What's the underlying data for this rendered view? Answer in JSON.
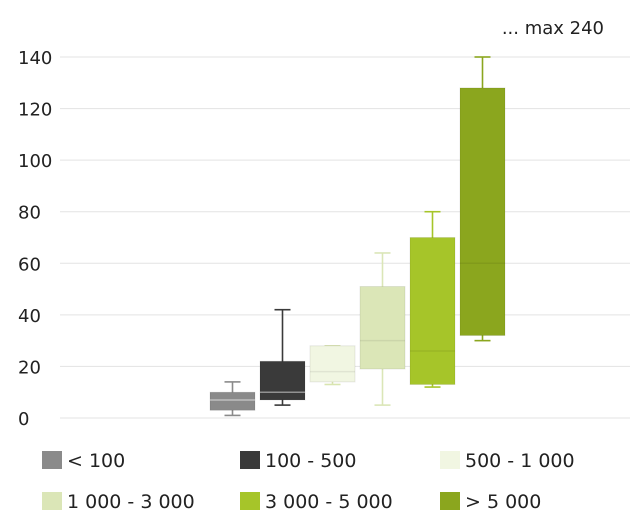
{
  "chart_data": {
    "type": "boxplot",
    "title": "",
    "xlabel": "",
    "ylabel": "",
    "ylim": [
      0,
      140
    ],
    "yticks": [
      0,
      20,
      40,
      60,
      80,
      100,
      120,
      140
    ],
    "grid": "horizontal",
    "legend_position": "bottom",
    "annotation": "... max 240",
    "series": [
      {
        "name": "< 100",
        "color": "#8a8a8a",
        "min": 1,
        "q1": 3,
        "median": 7,
        "q3": 10,
        "max": 14
      },
      {
        "name": "100 - 500",
        "color": "#3a3a3a",
        "min": 5,
        "q1": 7,
        "median": 10,
        "q3": 22,
        "max": 42
      },
      {
        "name": "500 - 1 000",
        "color": "#f1f6e2",
        "min": 13,
        "q1": 14,
        "median": 18,
        "q3": 28,
        "max": 28
      },
      {
        "name": "1 000 - 3 000",
        "color": "#dbe6b7",
        "min": 5,
        "q1": 19,
        "median": 30,
        "q3": 51,
        "max": 64
      },
      {
        "name": "3 000 - 5 000",
        "color": "#a6c529",
        "min": 12,
        "q1": 13,
        "median": 26,
        "q3": 70,
        "max": 80
      },
      {
        "name": "> 5 000",
        "color": "#8ba61e",
        "min": 30,
        "q1": 32,
        "median": 60,
        "q3": 128,
        "max": 140
      }
    ]
  }
}
